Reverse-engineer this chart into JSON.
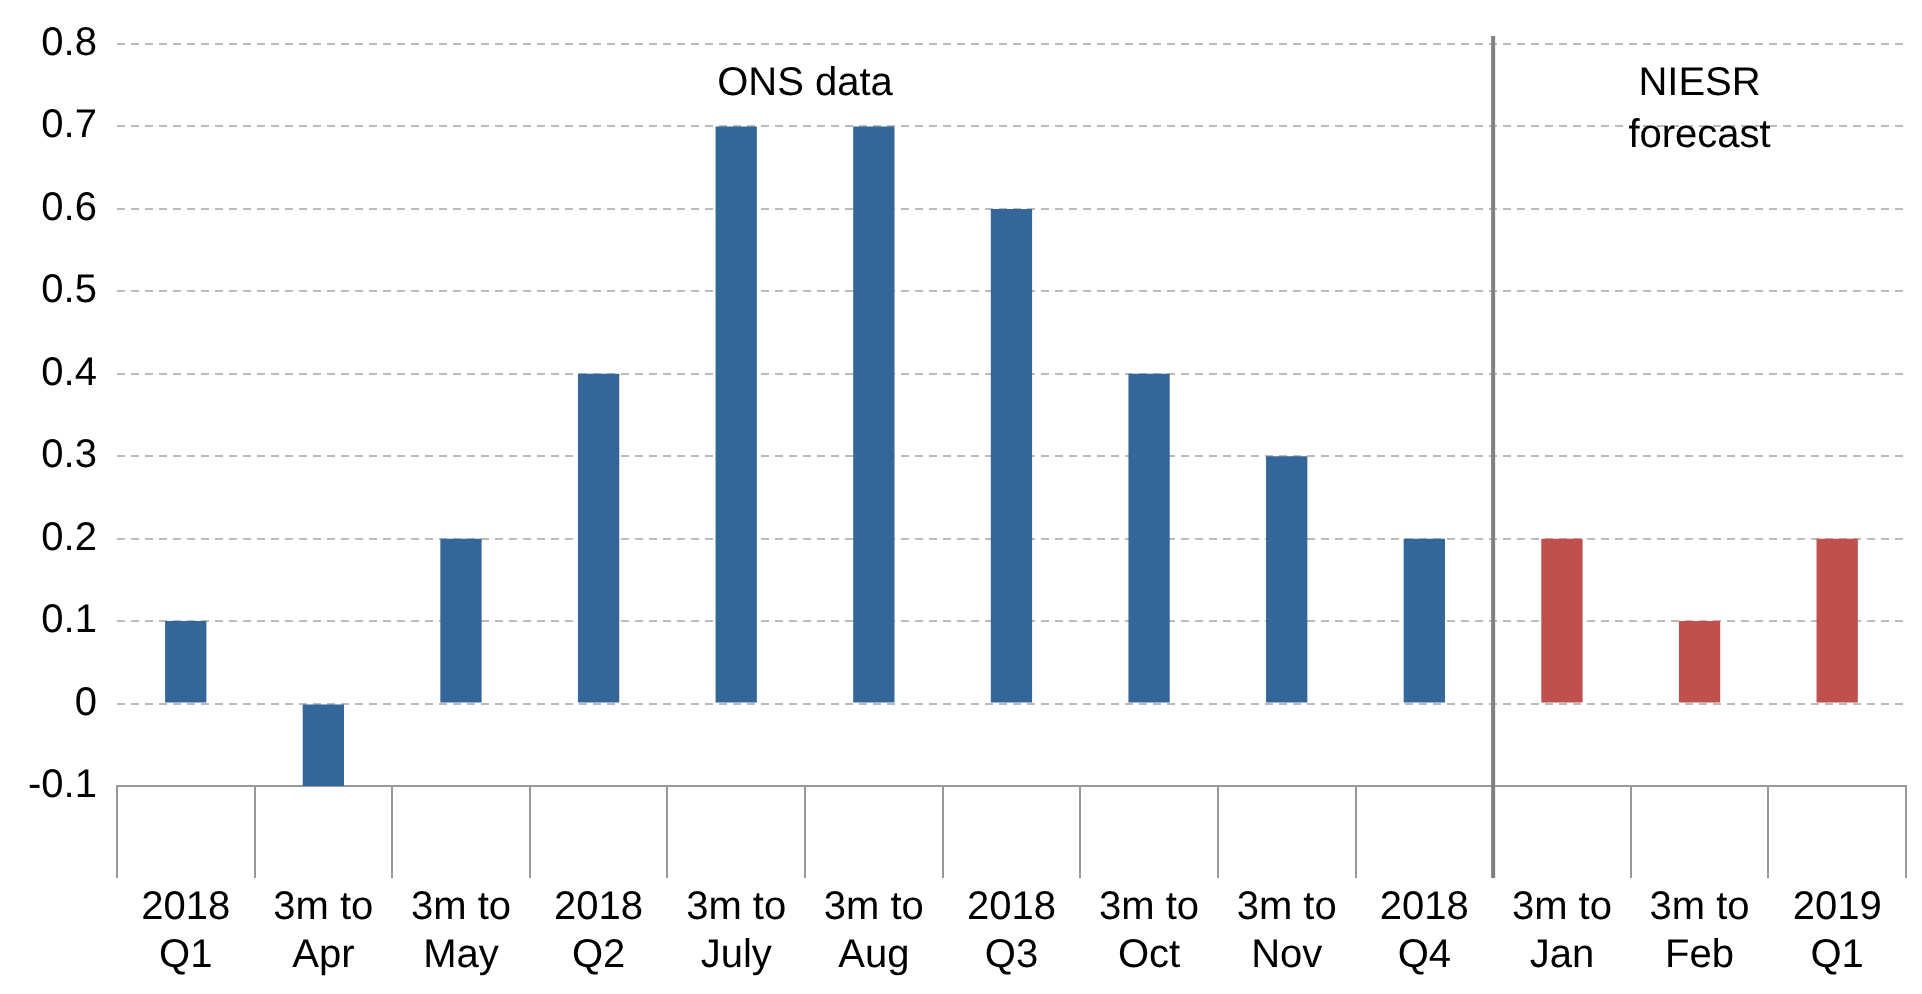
{
  "chart_data": {
    "type": "bar",
    "categories": [
      "2018 Q1",
      "3m to Apr",
      "3m to May",
      "2018 Q2",
      "3m to July",
      "3m to Aug",
      "2018 Q3",
      "3m to Oct",
      "3m to Nov",
      "2018 Q4",
      "3m to Jan",
      "3m to Feb",
      "2019 Q1"
    ],
    "values": [
      0.1,
      -0.1,
      0.2,
      0.4,
      0.7,
      0.7,
      0.6,
      0.4,
      0.3,
      0.2,
      0.2,
      0.1,
      0.2
    ],
    "colors": [
      "#336699",
      "#336699",
      "#336699",
      "#336699",
      "#336699",
      "#336699",
      "#336699",
      "#336699",
      "#336699",
      "#336699",
      "#c0504d",
      "#c0504d",
      "#c0504d"
    ],
    "ylim": [
      -0.1,
      0.8
    ],
    "yticks": [
      -0.1,
      0,
      0.1,
      0.2,
      0.3,
      0.4,
      0.5,
      0.6,
      0.7,
      0.8
    ],
    "grid": "y",
    "ref_lines": [
      {
        "axis": "x",
        "value": "3m to Jan",
        "color": "#808080"
      }
    ],
    "annotations": [
      "ONS data",
      "NIESR forecast"
    ]
  }
}
